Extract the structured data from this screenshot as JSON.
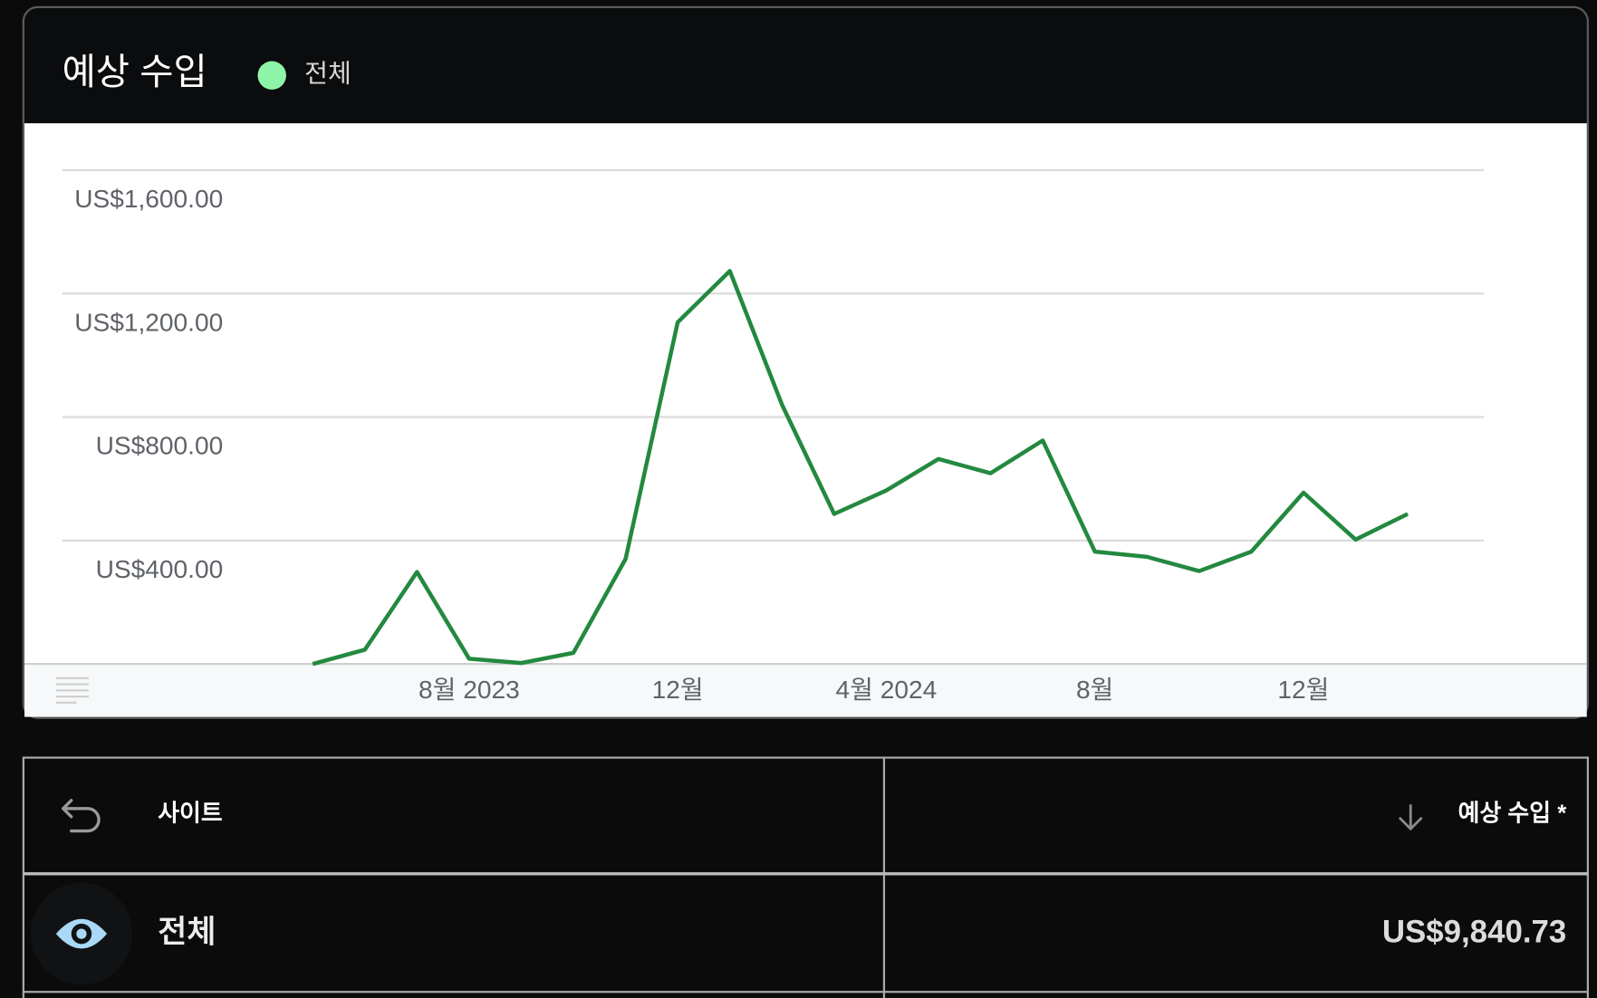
{
  "chart_data": {
    "type": "line",
    "title": "예상 수입",
    "categories": [
      null,
      null,
      null,
      "8월 2023",
      null,
      null,
      null,
      "12월",
      null,
      null,
      null,
      "4월 2024",
      null,
      null,
      null,
      "8월",
      null,
      null,
      null,
      "12월",
      null,
      null
    ],
    "series": [
      {
        "name": "전체",
        "color": "#23893f",
        "values": [
          0,
          46,
          298,
          17,
          3,
          36,
          340,
          1107,
          1273,
          840,
          486,
          562,
          664,
          618,
          724,
          364,
          347,
          301,
          364,
          555,
          403,
          486
        ]
      }
    ],
    "legend_color": "#8ef5a8",
    "ylim": [
      0,
      1600
    ],
    "yticks": [
      {
        "value": 400,
        "label": "US$400.00"
      },
      {
        "value": 800,
        "label": "US$800.00"
      },
      {
        "value": 1200,
        "label": "US$1,200.00"
      },
      {
        "value": 1600,
        "label": "US$1,600.00"
      }
    ],
    "grid": true
  },
  "table": {
    "headers": [
      "사이트",
      "예상 수입 *"
    ],
    "rows": [
      [
        "전체",
        "US$9,840.73"
      ]
    ]
  }
}
